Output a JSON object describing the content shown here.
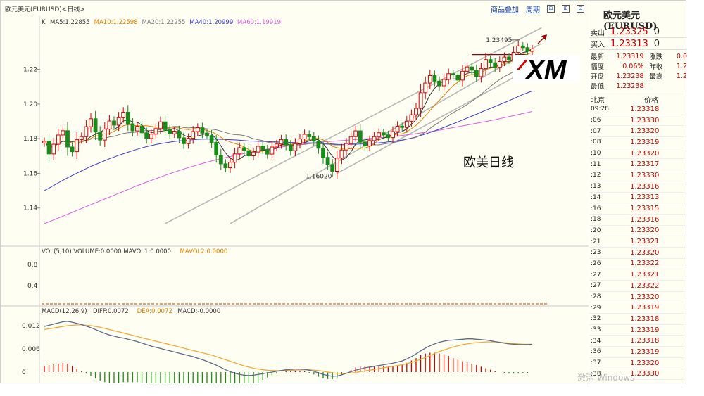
{
  "header": {
    "title": "欧元美元(EURUSD)<日线>",
    "links": [
      "商品叠加",
      "周期"
    ],
    "buttons": [
      "⊟",
      "⊞",
      "⊡"
    ]
  },
  "chart_data": {
    "type": "candlestick",
    "annotation": "欧美日线",
    "ma_legend": {
      "prefix": "K",
      "items": [
        {
          "text": "MA5:1.22855",
          "color": "#333333"
        },
        {
          "text": "MA10:1.22598",
          "color": "#e87e00"
        },
        {
          "text": "MA20:1.22255",
          "color": "#7a7a7a"
        },
        {
          "text": "MA40:1.20999",
          "color": "#3b3bd8"
        },
        {
          "text": "MA60:1.19919",
          "color": "#e060e0"
        }
      ]
    },
    "price_axis": {
      "ticks": [
        "1.22",
        "1.20",
        "1.18",
        "1.16",
        "1.14"
      ],
      "min": 1.12,
      "max": 1.245
    },
    "high_label": "1.23495",
    "low_label": "1.16020",
    "volume_legend": {
      "items": [
        {
          "text": "VOL(5,10) VOLUME:0.0000 MAVOL1:0.0000",
          "color": "#333333"
        },
        {
          "text": "MAVOL2:0.0000",
          "color": "#e87e00"
        }
      ],
      "ticks": [
        "0.8",
        "0.4"
      ]
    },
    "macd_legend": {
      "items": [
        {
          "text": "MACD(12,26,9)",
          "color": "#333333"
        },
        {
          "text": "DIFF:0.0072",
          "color": "#333333"
        },
        {
          "text": "DEA:0.0072",
          "color": "#e87e00"
        },
        {
          "text": "MACD:-0.0000",
          "color": "#333333"
        }
      ],
      "ticks": [
        "0.012",
        "0.006",
        "0"
      ]
    },
    "colors": {
      "up": "#d40000",
      "down": "#1a8a1a",
      "dif": "#5a6b85",
      "dea": "#f5a93a",
      "channel": "#b8b8b8",
      "arrow": "#a00000",
      "resistance": "#a00000"
    },
    "close": [
      1.1785,
      1.1712,
      1.1768,
      1.1821,
      1.1846,
      1.1752,
      1.1725,
      1.1795,
      1.1812,
      1.1869,
      1.1915,
      1.1838,
      1.1792,
      1.1855,
      1.1902,
      1.1878,
      1.1921,
      1.1953,
      1.1886,
      1.1845,
      1.1871,
      1.1834,
      1.1801,
      1.1826,
      1.1858,
      1.1897,
      1.1852,
      1.1828,
      1.1843,
      1.1805,
      1.1771,
      1.1802,
      1.1841,
      1.1863,
      1.1832,
      1.1818,
      1.1778,
      1.1705,
      1.1655,
      1.1632,
      1.1664,
      1.1712,
      1.1748,
      1.1731,
      1.1701,
      1.1723,
      1.1756,
      1.1737,
      1.1711,
      1.1752,
      1.1769,
      1.1795,
      1.1763,
      1.1731,
      1.1771,
      1.1798,
      1.1825,
      1.1811,
      1.1786,
      1.1745,
      1.1692,
      1.1651,
      1.1612,
      1.1688,
      1.1735,
      1.1772,
      1.1812,
      1.1845,
      1.1781,
      1.1758,
      1.1789,
      1.1812,
      1.1834,
      1.1822,
      1.1806,
      1.1841,
      1.1872,
      1.1865,
      1.1901,
      1.1938,
      1.1975,
      1.2065,
      1.2121,
      1.2164,
      1.2132,
      1.2105,
      1.2142,
      1.2175,
      1.2168,
      1.2138,
      1.2189,
      1.2214,
      1.2195,
      1.2158,
      1.2204,
      1.2256,
      1.2238,
      1.2212,
      1.2245,
      1.2271,
      1.2255,
      1.2298,
      1.2335,
      1.2325,
      1.2304,
      1.2318
    ],
    "ma": {
      "ma5": [
        1.1785,
        1.1749,
        1.1755,
        1.1771,
        1.1786,
        1.178,
        1.1782,
        1.1788,
        1.1786,
        1.1791,
        1.1813,
        1.1826,
        1.1837,
        1.1854,
        1.186,
        1.1853,
        1.187,
        1.1902,
        1.1908,
        1.1897,
        1.1895,
        1.1878,
        1.1847,
        1.1835,
        1.1838,
        1.1843,
        1.1847,
        1.185,
        1.186,
        1.1845,
        1.182,
        1.181,
        1.1812,
        1.1816,
        1.1822,
        1.1831,
        1.1826,
        1.1799,
        1.1758,
        1.1718,
        1.1687,
        1.1674,
        1.1682,
        1.1701,
        1.1711,
        1.1723,
        1.1732,
        1.1733,
        1.1736,
        1.1736,
        1.1745,
        1.1765,
        1.1768,
        1.1762,
        1.1766,
        1.1772,
        1.1778,
        1.1787,
        1.1798,
        1.1793,
        1.1772,
        1.1737,
        1.1697,
        1.1678,
        1.1676,
        1.1692,
        1.1724,
        1.177,
        1.1789,
        1.1793,
        1.1797,
        1.1797,
        1.1795,
        1.1803,
        1.1813,
        1.1823,
        1.1835,
        1.1841,
        1.1857,
        1.1883,
        1.191,
        1.1949,
        1.2,
        1.2053,
        1.2091,
        1.2117,
        1.2133,
        1.2144,
        1.2144,
        1.2146,
        1.2162,
        1.2177,
        1.2183,
        1.2179,
        1.2192,
        1.2205,
        1.2213,
        1.2214,
        1.2231,
        1.2244,
        1.2244,
        1.2256,
        1.2281,
        1.2297,
        1.2303,
        1.2316
      ],
      "ma10": [
        1.1785,
        1.1749,
        1.1755,
        1.1771,
        1.1786,
        1.178,
        1.1774,
        1.1777,
        1.1781,
        1.1789,
        1.1802,
        1.1815,
        1.1818,
        1.1824,
        1.183,
        1.1843,
        1.1858,
        1.1874,
        1.1881,
        1.1878,
        1.1874,
        1.1874,
        1.1875,
        1.1871,
        1.1867,
        1.1865,
        1.1858,
        1.1861,
        1.1863,
        1.1862,
        1.1855,
        1.1852,
        1.1856,
        1.186,
        1.1855,
        1.1847,
        1.184,
        1.1827,
        1.1808,
        1.1791,
        1.1781,
        1.1772,
        1.1765,
        1.1752,
        1.1737,
        1.1727,
        1.1725,
        1.1728,
        1.1733,
        1.1745,
        1.1755,
        1.1763,
        1.1764,
        1.1767,
        1.1774,
        1.1781,
        1.1788,
        1.1794,
        1.1802,
        1.1801,
        1.1793,
        1.1778,
        1.1756,
        1.1748,
        1.1744,
        1.1742,
        1.1742,
        1.1746,
        1.1745,
        1.1746,
        1.1755,
        1.1771,
        1.1793,
        1.1806,
        1.1813,
        1.182,
        1.1826,
        1.1828,
        1.184,
        1.1858,
        1.1877,
        1.1903,
        1.1932,
        1.1962,
        1.1994,
        1.2021,
        1.2049,
        1.2079,
        1.2106,
        1.2126,
        1.2148,
        1.2163,
        1.217,
        1.217,
        1.2181,
        1.2198,
        1.2207,
        1.2212,
        1.2221,
        1.2234,
        1.2241,
        1.2249,
        1.2263,
        1.2279,
        1.2287,
        1.2297
      ],
      "ma20": [
        1.1785,
        1.1749,
        1.1755,
        1.1771,
        1.1786,
        1.178,
        1.1774,
        1.1777,
        1.1781,
        1.1789,
        1.1797,
        1.1801,
        1.18,
        1.1804,
        1.181,
        1.1814,
        1.1822,
        1.183,
        1.1834,
        1.1835,
        1.1839,
        1.1845,
        1.1847,
        1.1847,
        1.1848,
        1.1853,
        1.1858,
        1.1866,
        1.1871,
        1.187,
        1.1864,
        1.1862,
        1.1864,
        1.1864,
        1.186,
        1.1857,
        1.1855,
        1.1851,
        1.1844,
        1.1836,
        1.1828,
        1.1823,
        1.1822,
        1.1818,
        1.1809,
        1.18,
        1.1794,
        1.1789,
        1.178,
        1.1776,
        1.1776,
        1.1775,
        1.1772,
        1.1766,
        1.1764,
        1.1764,
        1.1767,
        1.1771,
        1.1774,
        1.1772,
        1.177,
        1.1768,
        1.1765,
        1.1764,
        1.1764,
        1.1766,
        1.1769,
        1.1774,
        1.1777,
        1.1772,
        1.1766,
        1.1764,
        1.1764,
        1.1769,
        1.1773,
        1.1777,
        1.1782,
        1.1789,
        1.1798,
        1.1802,
        1.1808,
        1.1822,
        1.1838,
        1.186,
        1.1878,
        1.1895,
        1.1914,
        1.1933,
        1.1951,
        1.1965,
        1.1981,
        1.1997,
        1.2016,
        1.2034,
        1.2056,
        1.2079,
        1.2101,
        1.2123,
        1.2141,
        1.2158,
        1.2172,
        1.2186,
        1.2203,
        1.2221,
        1.2237,
        1.225
      ],
      "ma40": [
        1.15,
        1.1515,
        1.153,
        1.1545,
        1.156,
        1.1574,
        1.1588,
        1.1601,
        1.1614,
        1.1627,
        1.164,
        1.1651,
        1.1662,
        1.1673,
        1.1684,
        1.1694,
        1.1704,
        1.1713,
        1.1722,
        1.1731,
        1.1739,
        1.1747,
        1.1754,
        1.176,
        1.1766,
        1.1771,
        1.1776,
        1.178,
        1.1784,
        1.1787,
        1.179,
        1.1792,
        1.1794,
        1.1796,
        1.1797,
        1.1798,
        1.1798,
        1.1797,
        1.1796,
        1.1795,
        1.1794,
        1.1793,
        1.1791,
        1.1789,
        1.1787,
        1.1786,
        1.1785,
        1.1784,
        1.1783,
        1.1782,
        1.1781,
        1.178,
        1.1779,
        1.1778,
        1.1777,
        1.1776,
        1.1776,
        1.1776,
        1.1776,
        1.1775,
        1.1773,
        1.1771,
        1.1769,
        1.1767,
        1.1766,
        1.1766,
        1.1767,
        1.1768,
        1.1769,
        1.177,
        1.1772,
        1.1774,
        1.1776,
        1.1778,
        1.1781,
        1.1784,
        1.1788,
        1.1792,
        1.1797,
        1.1803,
        1.181,
        1.1818,
        1.1827,
        1.1836,
        1.1845,
        1.1855,
        1.1865,
        1.1876,
        1.1886,
        1.1897,
        1.1908,
        1.1919,
        1.193,
        1.1941,
        1.1953,
        1.1964,
        1.1975,
        1.1986,
        1.1997,
        1.2008,
        1.2019,
        1.2031,
        1.2043,
        1.2055,
        1.2065,
        1.2075
      ],
      "ma60": [
        1.131,
        1.132,
        1.1331,
        1.1342,
        1.1353,
        1.1364,
        1.1375,
        1.1386,
        1.1397,
        1.1408,
        1.1419,
        1.143,
        1.1441,
        1.1452,
        1.1463,
        1.1474,
        1.1485,
        1.1496,
        1.1507,
        1.1518,
        1.1529,
        1.1539,
        1.1549,
        1.1559,
        1.1569,
        1.1579,
        1.1589,
        1.1598,
        1.1607,
        1.1616,
        1.1625,
        1.1633,
        1.1641,
        1.1649,
        1.1657,
        1.1664,
        1.1671,
        1.1678,
        1.1685,
        1.1691,
        1.1697,
        1.1703,
        1.1709,
        1.1715,
        1.172,
        1.1725,
        1.173,
        1.1735,
        1.174,
        1.1744,
        1.1748,
        1.1752,
        1.1756,
        1.176,
        1.1764,
        1.1767,
        1.177,
        1.1773,
        1.1776,
        1.1779,
        1.1781,
        1.1783,
        1.1785,
        1.1787,
        1.1789,
        1.1791,
        1.1793,
        1.1795,
        1.1797,
        1.1799,
        1.1801,
        1.1803,
        1.1805,
        1.1807,
        1.181,
        1.1813,
        1.1816,
        1.1819,
        1.1822,
        1.1825,
        1.1829,
        1.1833,
        1.1837,
        1.1841,
        1.1845,
        1.1849,
        1.1854,
        1.1859,
        1.1864,
        1.1869,
        1.1874,
        1.1879,
        1.1884,
        1.1889,
        1.1894,
        1.1899,
        1.1904,
        1.1909,
        1.1915,
        1.1921,
        1.1927,
        1.1933,
        1.1939,
        1.1945,
        1.1951,
        1.1957
      ]
    },
    "channel_lines": [
      {
        "from": [
          26,
          1.131
        ],
        "to": [
          107,
          1.244
        ]
      },
      {
        "from": [
          40,
          1.131
        ],
        "to": [
          107,
          1.235
        ]
      },
      {
        "from": [
          63,
          1.16
        ],
        "to": [
          107,
          1.224
        ]
      }
    ],
    "resistance": {
      "from": 92,
      "to": 104,
      "value": 1.2285
    },
    "macd": {
      "dif": [
        0.0118,
        0.0121,
        0.0124,
        0.0127,
        0.013,
        0.0131,
        0.0129,
        0.0126,
        0.0123,
        0.0119,
        0.0115,
        0.011,
        0.0105,
        0.01,
        0.0096,
        0.0093,
        0.009,
        0.0088,
        0.0085,
        0.0082,
        0.0079,
        0.0075,
        0.0071,
        0.0067,
        0.0064,
        0.0061,
        0.0058,
        0.0055,
        0.0052,
        0.0049,
        0.0046,
        0.0043,
        0.004,
        0.0036,
        0.0032,
        0.0028,
        0.0023,
        0.0018,
        0.0012,
        0.0006,
        0.0001,
        -0.0003,
        -0.0006,
        -0.0008,
        -0.0009,
        -0.0008,
        -0.0006,
        -0.0004,
        -0.0002,
        0.0,
        0.0002,
        0.0004,
        0.0006,
        0.0007,
        0.0008,
        0.0008,
        0.0007,
        0.0005,
        0.0002,
        -0.0002,
        -0.0006,
        -0.0009,
        -0.0011,
        -0.001,
        -0.0007,
        -0.0003,
        0.0001,
        0.0005,
        0.0008,
        0.0011,
        0.0013,
        0.0015,
        0.0017,
        0.0019,
        0.0021,
        0.0023,
        0.0026,
        0.0029,
        0.0034,
        0.004,
        0.0047,
        0.0055,
        0.0062,
        0.0068,
        0.0073,
        0.0077,
        0.008,
        0.0082,
        0.0083,
        0.0084,
        0.0085,
        0.0086,
        0.0086,
        0.0085,
        0.0084,
        0.0083,
        0.0081,
        0.0079,
        0.0077,
        0.0075,
        0.0073,
        0.0072,
        0.0071,
        0.0071,
        0.0071,
        0.0072
      ],
      "dea": [
        0.011,
        0.0112,
        0.0114,
        0.0116,
        0.0118,
        0.012,
        0.0121,
        0.0122,
        0.0122,
        0.0121,
        0.012,
        0.0118,
        0.0116,
        0.0113,
        0.011,
        0.0107,
        0.0104,
        0.0101,
        0.0098,
        0.0095,
        0.0092,
        0.0089,
        0.0086,
        0.0083,
        0.008,
        0.0077,
        0.0074,
        0.0071,
        0.0068,
        0.0065,
        0.0062,
        0.0059,
        0.0056,
        0.0053,
        0.005,
        0.0047,
        0.0044,
        0.004,
        0.0036,
        0.0032,
        0.0028,
        0.0024,
        0.002,
        0.0016,
        0.0013,
        0.001,
        0.0008,
        0.0006,
        0.0005,
        0.0004,
        0.0004,
        0.0004,
        0.0004,
        0.0005,
        0.0005,
        0.0006,
        0.0006,
        0.0006,
        0.0005,
        0.0004,
        0.0002,
        0.0,
        -0.0002,
        -0.0003,
        -0.0003,
        -0.0003,
        -0.0002,
        -0.0001,
        0.0001,
        0.0003,
        0.0005,
        0.0007,
        0.0009,
        0.0011,
        0.0013,
        0.0015,
        0.0017,
        0.0019,
        0.0022,
        0.0025,
        0.0029,
        0.0033,
        0.0038,
        0.0043,
        0.0048,
        0.0053,
        0.0057,
        0.0061,
        0.0065,
        0.0068,
        0.0071,
        0.0073,
        0.0075,
        0.0076,
        0.0077,
        0.0078,
        0.0078,
        0.0078,
        0.0077,
        0.0076,
        0.0075,
        0.0074,
        0.0073,
        0.0072,
        0.0072,
        0.0072
      ]
    }
  },
  "sidebar": {
    "title": "欧元美元(EURUSD)",
    "sell": {
      "label": "卖出",
      "price": "1.23325",
      "vol": "0"
    },
    "buy": {
      "label": "买入",
      "price": "1.23313",
      "vol": "0"
    },
    "stats": [
      {
        "k1": "最新",
        "v1": "1.23319",
        "k2": "涨跌",
        "v2": "0.0"
      },
      {
        "k1": "幅度",
        "v1": "0.06%",
        "k2": "昨收",
        "v2": "1.2"
      },
      {
        "k1": "开盘",
        "v1": "1.23238",
        "k2": "最高",
        "v2": "1.2"
      },
      {
        "k1": "最低",
        "v1": "1.23238",
        "k2": "",
        "v2": ""
      }
    ],
    "ticks_header": {
      "time": "北京",
      "price": "价格"
    },
    "ticks": [
      {
        "t": "09:28",
        "p": "1.23318"
      },
      {
        "t": ":06",
        "p": "1.23330"
      },
      {
        "t": ":07",
        "p": "1.23320"
      },
      {
        "t": ":08",
        "p": "1.23319"
      },
      {
        "t": ":10",
        "p": "1.23320"
      },
      {
        "t": ":11",
        "p": "1.23317"
      },
      {
        "t": ":12",
        "p": "1.23330"
      },
      {
        "t": ":13",
        "p": "1.23316"
      },
      {
        "t": ":14",
        "p": "1.23313"
      },
      {
        "t": ":16",
        "p": "1.23315"
      },
      {
        "t": ":18",
        "p": "1.23316"
      },
      {
        "t": ":20",
        "p": "1.23320"
      },
      {
        "t": ":21",
        "p": "1.23321"
      },
      {
        "t": ":23",
        "p": "1.23320"
      },
      {
        "t": ":26",
        "p": "1.23322"
      },
      {
        "t": ":27",
        "p": "1.23321"
      },
      {
        "t": ":27",
        "p": "1.23322"
      },
      {
        "t": ":28",
        "p": "1.23320"
      },
      {
        "t": ":29",
        "p": "1.23319"
      },
      {
        "t": ":32",
        "p": "1.23318"
      },
      {
        "t": ":33",
        "p": "1.23319"
      },
      {
        "t": ":34",
        "p": "1.23318"
      },
      {
        "t": ":36",
        "p": "1.23319"
      },
      {
        "t": ":37",
        "p": "1.23320"
      },
      {
        "t": ":38",
        "p": "1.23330"
      }
    ]
  },
  "logo": {
    "text": "XM"
  },
  "watermark": "激活 Windows"
}
